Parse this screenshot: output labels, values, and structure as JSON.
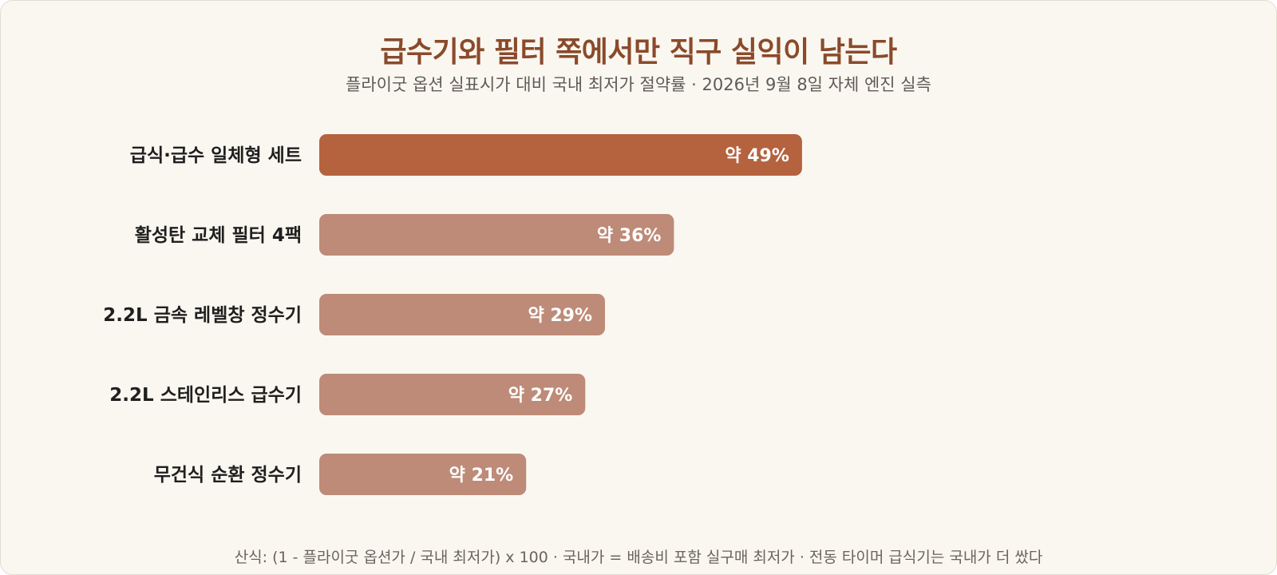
{
  "title": "급수기와 필터 쪽에서만 직구 실익이 남는다",
  "subtitle": "플라이굿 옵션 실표시가 대비 국내 최저가 절약률 · 2026년 9월 8일 자체 엔진 실측",
  "footnote": "산식: (1 - 플라이굿 옵션가 / 국내 최저가) x 100 · 국내가 = 배송비 포함 실구매 최저가 · 전동 타이머 급식기는 국내가 더 쌌다",
  "colors": {
    "highlight_bar": "#b5623f",
    "bar": "#bd8b78",
    "bar_label": "#ffffff",
    "category_label": "#1f1f1f"
  },
  "chart_data": {
    "type": "bar",
    "orientation": "horizontal",
    "title": "급수기와 필터 쪽에서만 직구 실익이 남는다",
    "subtitle": "플라이굿 옵션 실표시가 대비 국내 최저가 절약률 · 2026년 9월 8일 자체 엔진 실측",
    "categories": [
      "급식·급수 일체형 세트",
      "활성탄 교체 필터 4팩",
      "2.2L 금속 레벨창 정수기",
      "2.2L 스테인리스 급수기",
      "무건식 순환 정수기"
    ],
    "values": [
      49,
      36,
      29,
      27,
      21
    ],
    "data_labels": [
      "약 49%",
      "약 36%",
      "약 29%",
      "약 27%",
      "약 21%"
    ],
    "highlight_index": 0,
    "xlim": [
      0,
      70
    ],
    "grid": false,
    "legend": "none"
  }
}
